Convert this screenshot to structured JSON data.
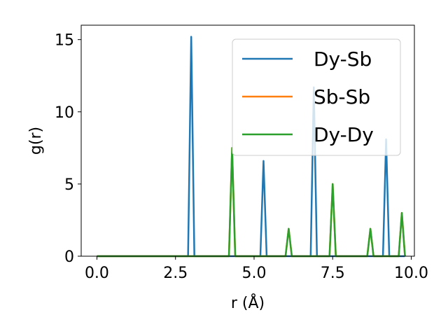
{
  "chart_data": {
    "type": "line",
    "xlabel": "r (Å)",
    "ylabel": "g(r)",
    "xlim": [
      -0.5,
      10.1
    ],
    "ylim": [
      0,
      16
    ],
    "xticks": [
      0.0,
      2.5,
      5.0,
      7.5,
      10.0
    ],
    "xtick_labels": [
      "0.0",
      "2.5",
      "5.0",
      "7.5",
      "10.0"
    ],
    "yticks": [
      0,
      5,
      10,
      15
    ],
    "ytick_labels": [
      "0",
      "5",
      "10",
      "15"
    ],
    "grid": false,
    "legend_position": "top-right",
    "series": [
      {
        "name": "Dy-Sb",
        "color": "#1f77b4",
        "x": [
          0.0,
          2.9,
          3.0,
          3.1,
          5.2,
          5.3,
          5.4,
          6.8,
          6.9,
          7.0,
          9.1,
          9.2,
          9.3,
          9.8
        ],
        "y": [
          0,
          0,
          15.2,
          0,
          0,
          6.6,
          0,
          0,
          11.7,
          0,
          0,
          8.1,
          0,
          0
        ]
      },
      {
        "name": "Sb-Sb",
        "color": "#ff7f0e",
        "x": [
          0.0,
          4.2,
          4.3,
          4.4,
          6.0,
          6.1,
          6.2,
          7.4,
          7.5,
          7.6,
          8.6,
          8.7,
          8.8,
          9.6,
          9.7,
          9.8
        ],
        "y": [
          0,
          0,
          7.5,
          0,
          0,
          1.9,
          0,
          0,
          5.0,
          0,
          0,
          1.9,
          0,
          0,
          3.0,
          0
        ]
      },
      {
        "name": "Dy-Dy",
        "color": "#2ca02c",
        "x": [
          0.0,
          4.2,
          4.3,
          4.4,
          6.0,
          6.1,
          6.2,
          7.4,
          7.5,
          7.6,
          8.6,
          8.7,
          8.8,
          9.6,
          9.7,
          9.8
        ],
        "y": [
          0,
          0,
          7.5,
          0,
          0,
          1.9,
          0,
          0,
          5.0,
          0,
          0,
          1.9,
          0,
          0,
          3.0,
          0
        ]
      }
    ]
  }
}
